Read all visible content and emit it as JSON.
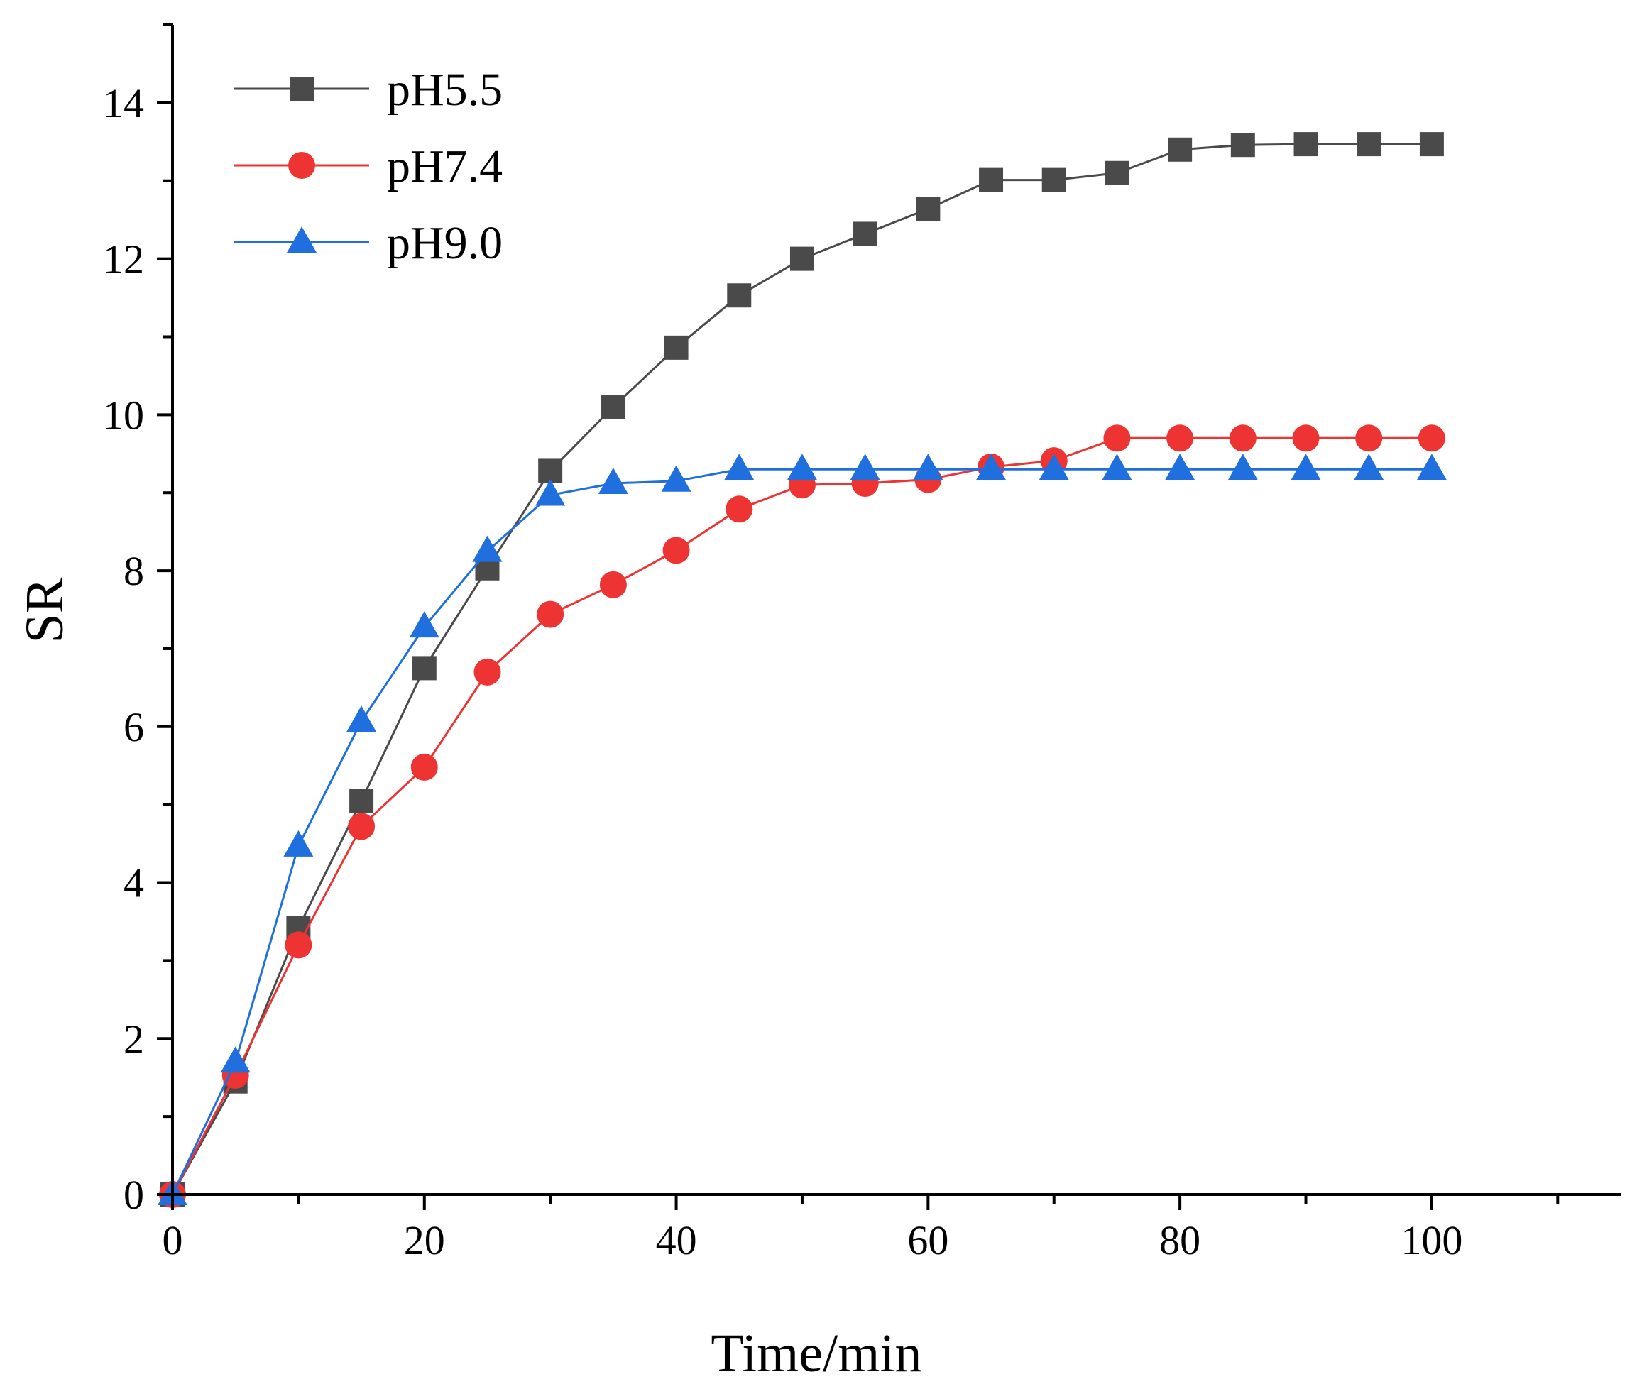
{
  "chart_data": {
    "type": "line",
    "title": "",
    "xlabel": "Time/min",
    "ylabel": "SR",
    "xlim": [
      0,
      115
    ],
    "ylim": [
      0,
      15
    ],
    "xticks": [
      0,
      20,
      40,
      60,
      80,
      100
    ],
    "xtick_labels": [
      "0",
      "20",
      "40",
      "60",
      "80",
      "100"
    ],
    "yticks": [
      0,
      2,
      4,
      6,
      8,
      10,
      12,
      14
    ],
    "ytick_labels": [
      "0",
      "2",
      "4",
      "6",
      "8",
      "10",
      "12",
      "14"
    ],
    "legend_position": "top-left",
    "grid": false,
    "x": [
      0,
      5,
      10,
      15,
      20,
      25,
      30,
      35,
      40,
      45,
      50,
      55,
      60,
      65,
      70,
      75,
      80,
      85,
      90,
      95,
      100
    ],
    "series": [
      {
        "name": "pH5.5",
        "color": "#4a4a4a",
        "marker": "square",
        "values": [
          0,
          1.45,
          3.42,
          5.05,
          6.75,
          8.03,
          9.28,
          10.1,
          10.86,
          11.53,
          12.0,
          12.32,
          12.64,
          13.01,
          13.01,
          13.1,
          13.4,
          13.46,
          13.47,
          13.47,
          13.47
        ]
      },
      {
        "name": "pH7.4",
        "color": "#ee3333",
        "marker": "circle",
        "values": [
          0,
          1.53,
          3.2,
          4.72,
          5.48,
          6.7,
          7.44,
          7.82,
          8.26,
          8.79,
          9.1,
          9.12,
          9.17,
          9.33,
          9.41,
          9.7,
          9.7,
          9.7,
          9.7,
          9.7,
          9.7
        ]
      },
      {
        "name": "pH9.0",
        "color": "#1f6fdf",
        "marker": "triangle",
        "values": [
          0,
          1.7,
          4.47,
          6.07,
          7.28,
          8.25,
          8.97,
          9.12,
          9.15,
          9.3,
          9.3,
          9.3,
          9.3,
          9.3,
          9.3,
          9.3,
          9.3,
          9.3,
          9.3,
          9.3,
          9.3
        ]
      }
    ]
  }
}
